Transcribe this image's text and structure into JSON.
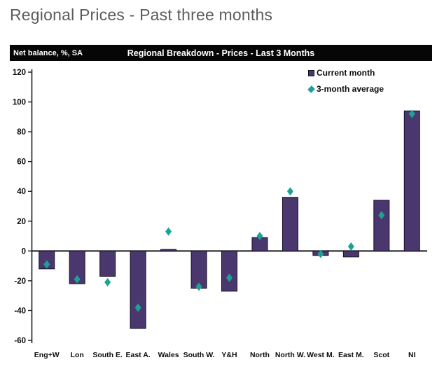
{
  "page": {
    "title": "Regional Prices - Past three months"
  },
  "chart_header": {
    "axis_label": "Net balance, %, SA",
    "title": "Regional Breakdown - Prices - Last 3 Months"
  },
  "legend": {
    "items": [
      {
        "label": "Current month",
        "marker": "square",
        "color": "#4a376e"
      },
      {
        "label": "3-month average",
        "marker": "diamond",
        "color": "#1ca294"
      }
    ]
  },
  "chart_data": {
    "type": "bar",
    "title": "Regional Breakdown - Prices - Last 3 Months",
    "xlabel": "",
    "ylabel": "Net balance, %, SA",
    "categories": [
      "Eng+W",
      "Lon",
      "South E.",
      "East A.",
      "Wales",
      "South W.",
      "Y&H",
      "North",
      "North W.",
      "West M.",
      "East M.",
      "Scot",
      "NI"
    ],
    "series": [
      {
        "name": "Current month",
        "type": "bar",
        "marker": "square",
        "color": "#4a376e",
        "values": [
          -12,
          -22,
          -17,
          -52,
          1,
          -25,
          -27,
          9,
          36,
          -3,
          -4,
          34,
          94
        ]
      },
      {
        "name": "3-month average",
        "type": "scatter",
        "marker": "diamond",
        "color": "#1ca294",
        "values": [
          -9,
          -19,
          -21,
          -38,
          13,
          -24,
          -18,
          10,
          40,
          -2,
          3,
          24,
          92
        ]
      }
    ],
    "ylim": [
      -60,
      120
    ],
    "ytick_step": 20,
    "grid": false,
    "legend_position": "top-right"
  },
  "colors": {
    "bar_fill": "#4a376e",
    "bar_stroke": "#150e2b",
    "diamond": "#1ca294",
    "header_bg": "#060606",
    "header_text": "#ffffff",
    "page_title_text": "#5c5c5c",
    "axis_line": "#1a1a1a",
    "tick_text": "#0c0c0c"
  }
}
